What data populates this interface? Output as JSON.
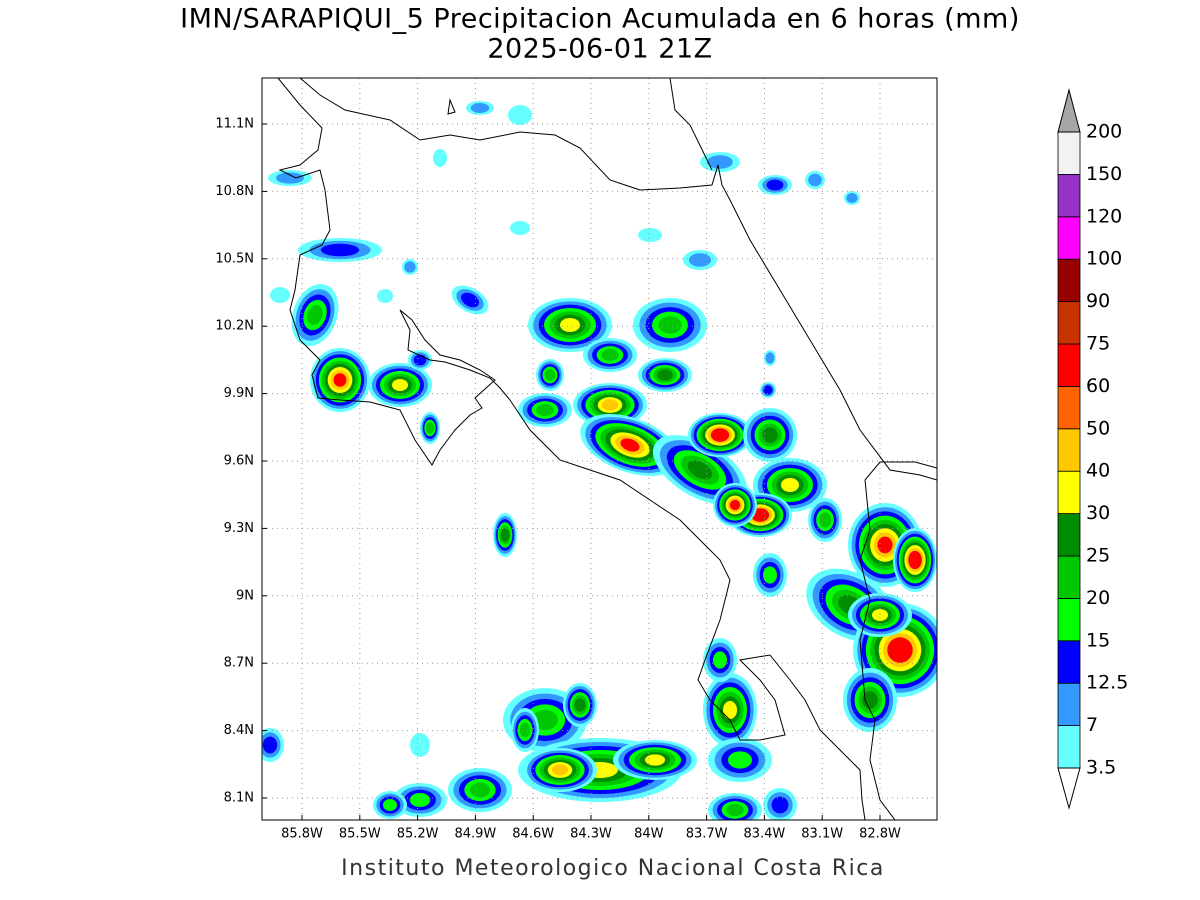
{
  "header": {
    "title": "IMN/SARAPIQUI_5 Precipitacion Acumulada en 6 horas (mm)",
    "subtitle": "2025-06-01 21Z"
  },
  "map": {
    "lat_labels": [
      "11.1N",
      "10.8N",
      "10.5N",
      "10.2N",
      "9.9N",
      "9.6N",
      "9.3N",
      "9N",
      "8.7N",
      "8.4N",
      "8.1N"
    ],
    "lon_labels": [
      "85.8W",
      "85.5W",
      "85.2W",
      "84.9W",
      "84.6W",
      "84.3W",
      "84W",
      "83.7W",
      "83.4W",
      "83.1W",
      "82.8W"
    ]
  },
  "colorbar": {
    "levels": [
      3.5,
      7,
      12.5,
      15,
      20,
      25,
      30,
      40,
      50,
      60,
      75,
      90,
      100,
      120,
      150,
      200
    ],
    "colors": [
      "#66ffff",
      "#3399ff",
      "#0000ff",
      "#00ff00",
      "#00c800",
      "#008c00",
      "#ffff00",
      "#ffc800",
      "#ff6400",
      "#ff0000",
      "#c83200",
      "#960000",
      "#ff00ff",
      "#9632c8",
      "#f2f2f2"
    ],
    "under_color": "#ffffff",
    "over_color": "#a6a6a6"
  },
  "footer": {
    "credit": "Instituto Meteorologico Nacional Costa Rica"
  }
}
